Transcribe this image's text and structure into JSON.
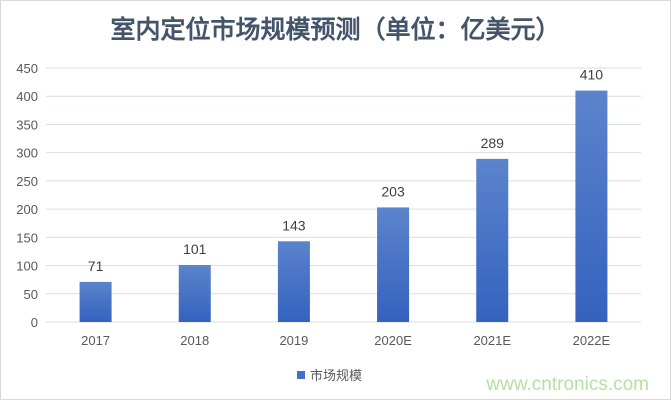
{
  "chart_data": {
    "type": "bar",
    "title": "室内定位市场规模预测（单位：亿美元）",
    "categories": [
      "2017",
      "2018",
      "2019",
      "2020E",
      "2021E",
      "2022E"
    ],
    "series": [
      {
        "name": "市场规模",
        "values": [
          71,
          101,
          143,
          203,
          289,
          410
        ]
      }
    ],
    "ylim": [
      0,
      450
    ],
    "yticks": [
      0,
      50,
      100,
      150,
      200,
      250,
      300,
      350,
      400,
      450
    ],
    "grid": true,
    "legend": "bottom",
    "bar_color": "#4472c4"
  },
  "watermark": "www.cntronics.com"
}
